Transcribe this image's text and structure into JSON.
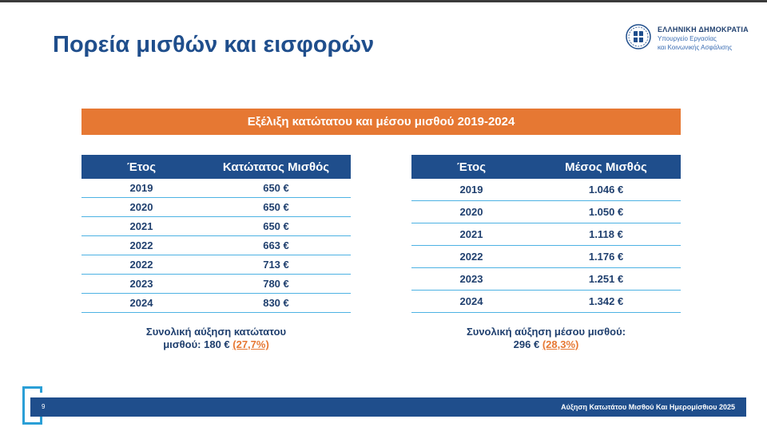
{
  "slide": {
    "title": "Πορεία μισθών και εισφορών",
    "logo": {
      "line1": "ΕΛΛΗΝΙΚΗ ΔΗΜΟΚΡΑΤΙΑ",
      "line2": "Υπουργείο Εργασίας",
      "line3": "και Κοινωνικής Ασφάλισης"
    },
    "banner": "Εξέλιξη κατώτατου και μέσου μισθού 2019-2024",
    "min_table": {
      "headers": [
        "Έτος",
        "Κατώτατος Μισθός"
      ],
      "rows": [
        [
          "2019",
          "650 €"
        ],
        [
          "2020",
          "650 €"
        ],
        [
          "2021",
          "650 €"
        ],
        [
          "2022",
          "663 €"
        ],
        [
          "2022",
          "713 €"
        ],
        [
          "2023",
          "780 €"
        ],
        [
          "2024",
          "830 €"
        ]
      ]
    },
    "avg_table": {
      "headers": [
        "Έτος",
        "Μέσος Μισθός"
      ],
      "rows": [
        [
          "2019",
          "1.046 €"
        ],
        [
          "2020",
          "1.050 €"
        ],
        [
          "2021",
          "1.118 €"
        ],
        [
          "2022",
          "1.176 €"
        ],
        [
          "2023",
          "1.251 €"
        ],
        [
          "2024",
          "1.342 €"
        ]
      ]
    },
    "summary_min": {
      "line1": "Συνολική αύξηση κατώτατου",
      "line2": "μισθού: 180 € ",
      "pct": "(27,7%)"
    },
    "summary_avg": {
      "line1": "Συνολική αύξηση μέσου μισθού:",
      "line2": "296 € ",
      "pct": "(28,3%)"
    },
    "footer": {
      "page_number": "9",
      "title": "Αύξηση Κατωτάτου Μισθού Και Ημερομίσθιου 2025"
    }
  }
}
